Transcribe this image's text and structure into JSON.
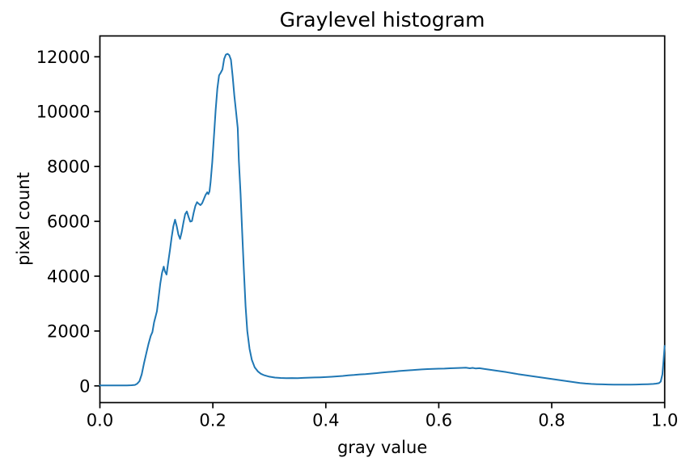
{
  "figure": {
    "background": "#ffffff",
    "spine_color": "#000000",
    "text_color": "#000000"
  },
  "chart_data": {
    "type": "line",
    "title": "Graylevel histogram",
    "xlabel": "gray value",
    "ylabel": "pixel count",
    "xlim": [
      0.0,
      1.0
    ],
    "ylim": [
      -610,
      12760
    ],
    "grid": false,
    "legend": "none",
    "x_ticks": {
      "values": [
        0.0,
        0.2,
        0.4,
        0.6,
        0.8,
        1.0
      ],
      "labels": [
        "0.0",
        "0.2",
        "0.4",
        "0.6",
        "0.8",
        "1.0"
      ]
    },
    "y_ticks": {
      "values": [
        0,
        2000,
        4000,
        6000,
        8000,
        10000,
        12000
      ],
      "labels": [
        "0",
        "2000",
        "4000",
        "6000",
        "8000",
        "10000",
        "12000"
      ]
    },
    "series": [
      {
        "name": "graylevel-histogram-curve",
        "color": "#1f77b4",
        "line_width": 2,
        "points": [
          [
            0.0,
            15
          ],
          [
            0.008,
            15
          ],
          [
            0.016,
            14
          ],
          [
            0.024,
            16
          ],
          [
            0.032,
            15
          ],
          [
            0.04,
            17
          ],
          [
            0.048,
            18
          ],
          [
            0.056,
            22
          ],
          [
            0.062,
            35
          ],
          [
            0.066,
            80
          ],
          [
            0.07,
            170
          ],
          [
            0.074,
            420
          ],
          [
            0.078,
            820
          ],
          [
            0.082,
            1180
          ],
          [
            0.086,
            1520
          ],
          [
            0.09,
            1820
          ],
          [
            0.093,
            1960
          ],
          [
            0.096,
            2320
          ],
          [
            0.099,
            2560
          ],
          [
            0.101,
            2720
          ],
          [
            0.104,
            3230
          ],
          [
            0.107,
            3740
          ],
          [
            0.11,
            4120
          ],
          [
            0.113,
            4350
          ],
          [
            0.115,
            4180
          ],
          [
            0.118,
            4060
          ],
          [
            0.121,
            4520
          ],
          [
            0.124,
            4950
          ],
          [
            0.127,
            5420
          ],
          [
            0.13,
            5820
          ],
          [
            0.133,
            6060
          ],
          [
            0.136,
            5820
          ],
          [
            0.139,
            5520
          ],
          [
            0.142,
            5360
          ],
          [
            0.145,
            5620
          ],
          [
            0.148,
            5960
          ],
          [
            0.151,
            6260
          ],
          [
            0.154,
            6360
          ],
          [
            0.157,
            6160
          ],
          [
            0.16,
            5990
          ],
          [
            0.163,
            6010
          ],
          [
            0.166,
            6310
          ],
          [
            0.169,
            6560
          ],
          [
            0.172,
            6700
          ],
          [
            0.175,
            6640
          ],
          [
            0.178,
            6590
          ],
          [
            0.181,
            6660
          ],
          [
            0.184,
            6810
          ],
          [
            0.187,
            6960
          ],
          [
            0.19,
            7060
          ],
          [
            0.192,
            6990
          ],
          [
            0.194,
            7090
          ],
          [
            0.196,
            7420
          ],
          [
            0.199,
            8150
          ],
          [
            0.202,
            9100
          ],
          [
            0.205,
            10060
          ],
          [
            0.208,
            10840
          ],
          [
            0.211,
            11320
          ],
          [
            0.214,
            11420
          ],
          [
            0.217,
            11540
          ],
          [
            0.22,
            11920
          ],
          [
            0.223,
            12080
          ],
          [
            0.226,
            12110
          ],
          [
            0.229,
            12060
          ],
          [
            0.232,
            11890
          ],
          [
            0.235,
            11290
          ],
          [
            0.238,
            10580
          ],
          [
            0.241,
            10000
          ],
          [
            0.244,
            9400
          ],
          [
            0.246,
            8200
          ],
          [
            0.249,
            7000
          ],
          [
            0.252,
            5600
          ],
          [
            0.255,
            4200
          ],
          [
            0.258,
            2900
          ],
          [
            0.261,
            2000
          ],
          [
            0.265,
            1350
          ],
          [
            0.269,
            950
          ],
          [
            0.274,
            680
          ],
          [
            0.28,
            520
          ],
          [
            0.285,
            440
          ],
          [
            0.29,
            395
          ],
          [
            0.295,
            365
          ],
          [
            0.3,
            335
          ],
          [
            0.31,
            302
          ],
          [
            0.32,
            288
          ],
          [
            0.33,
            278
          ],
          [
            0.34,
            286
          ],
          [
            0.35,
            279
          ],
          [
            0.36,
            291
          ],
          [
            0.37,
            299
          ],
          [
            0.38,
            307
          ],
          [
            0.39,
            311
          ],
          [
            0.4,
            322
          ],
          [
            0.41,
            331
          ],
          [
            0.42,
            347
          ],
          [
            0.43,
            362
          ],
          [
            0.44,
            381
          ],
          [
            0.45,
            396
          ],
          [
            0.46,
            417
          ],
          [
            0.47,
            431
          ],
          [
            0.48,
            447
          ],
          [
            0.49,
            466
          ],
          [
            0.5,
            487
          ],
          [
            0.51,
            506
          ],
          [
            0.52,
            521
          ],
          [
            0.53,
            541
          ],
          [
            0.54,
            556
          ],
          [
            0.55,
            571
          ],
          [
            0.56,
            586
          ],
          [
            0.57,
            601
          ],
          [
            0.58,
            611
          ],
          [
            0.59,
            621
          ],
          [
            0.6,
            626
          ],
          [
            0.61,
            631
          ],
          [
            0.62,
            641
          ],
          [
            0.63,
            651
          ],
          [
            0.64,
            656
          ],
          [
            0.648,
            661
          ],
          [
            0.655,
            641
          ],
          [
            0.66,
            656
          ],
          [
            0.665,
            636
          ],
          [
            0.672,
            646
          ],
          [
            0.68,
            621
          ],
          [
            0.69,
            591
          ],
          [
            0.7,
            561
          ],
          [
            0.71,
            531
          ],
          [
            0.72,
            501
          ],
          [
            0.73,
            466
          ],
          [
            0.74,
            431
          ],
          [
            0.75,
            401
          ],
          [
            0.76,
            371
          ],
          [
            0.77,
            341
          ],
          [
            0.78,
            311
          ],
          [
            0.79,
            281
          ],
          [
            0.8,
            251
          ],
          [
            0.81,
            221
          ],
          [
            0.82,
            191
          ],
          [
            0.83,
            161
          ],
          [
            0.84,
            131
          ],
          [
            0.85,
            106
          ],
          [
            0.86,
            86
          ],
          [
            0.87,
            71
          ],
          [
            0.88,
            61
          ],
          [
            0.89,
            56
          ],
          [
            0.9,
            51
          ],
          [
            0.91,
            48
          ],
          [
            0.92,
            46
          ],
          [
            0.93,
            45
          ],
          [
            0.94,
            48
          ],
          [
            0.95,
            51
          ],
          [
            0.96,
            56
          ],
          [
            0.97,
            61
          ],
          [
            0.98,
            71
          ],
          [
            0.985,
            81
          ],
          [
            0.99,
            101
          ],
          [
            0.993,
            155
          ],
          [
            0.996,
            420
          ],
          [
            0.998,
            920
          ],
          [
            1.0,
            1460
          ]
        ]
      }
    ]
  }
}
